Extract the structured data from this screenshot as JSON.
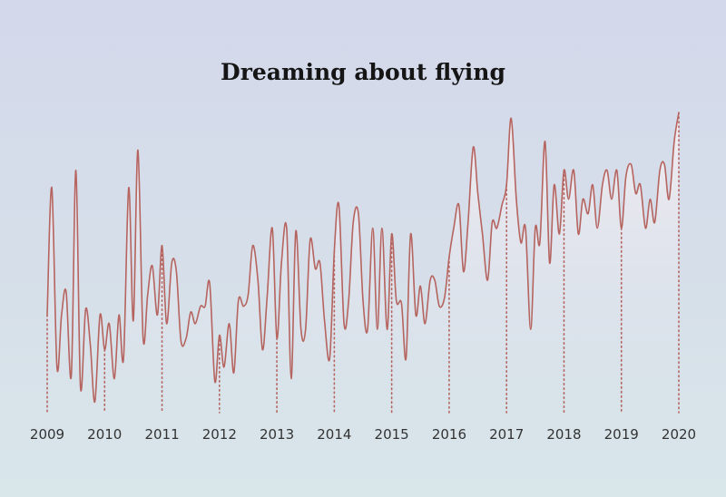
{
  "chart_data": {
    "type": "area",
    "title": "Dreaming about flying",
    "xlabel": "",
    "ylabel": "",
    "x_tick_labels": [
      "2009",
      "2010",
      "2011",
      "2012",
      "2013",
      "2014",
      "2015",
      "2016",
      "2017",
      "2018",
      "2019",
      "2020"
    ],
    "ylim": [
      0,
      100
    ],
    "grid": false,
    "colors": {
      "line": "#b5645f",
      "fill_top": "#f4eef1",
      "fill_bottom": "#e1e5ef"
    },
    "series": [
      {
        "values": [
          [
            2009.0,
            30
          ],
          [
            2009.08,
            74
          ],
          [
            2009.17,
            12
          ],
          [
            2009.25,
            30
          ],
          [
            2009.33,
            38
          ],
          [
            2009.42,
            9
          ],
          [
            2009.5,
            80
          ],
          [
            2009.58,
            5
          ],
          [
            2009.67,
            32
          ],
          [
            2009.75,
            20
          ],
          [
            2009.83,
            0
          ],
          [
            2009.92,
            30
          ],
          [
            2010.0,
            18
          ],
          [
            2010.08,
            27
          ],
          [
            2010.17,
            8
          ],
          [
            2010.25,
            30
          ],
          [
            2010.33,
            15
          ],
          [
            2010.42,
            74
          ],
          [
            2010.5,
            28
          ],
          [
            2010.58,
            87
          ],
          [
            2010.67,
            22
          ],
          [
            2010.75,
            37
          ],
          [
            2010.83,
            47
          ],
          [
            2010.92,
            30
          ],
          [
            2011.0,
            54
          ],
          [
            2011.08,
            27
          ],
          [
            2011.17,
            48
          ],
          [
            2011.25,
            45
          ],
          [
            2011.33,
            21
          ],
          [
            2011.42,
            22
          ],
          [
            2011.5,
            31
          ],
          [
            2011.58,
            27
          ],
          [
            2011.67,
            33
          ],
          [
            2011.75,
            33
          ],
          [
            2011.83,
            41
          ],
          [
            2011.92,
            7
          ],
          [
            2012.0,
            23
          ],
          [
            2012.08,
            12
          ],
          [
            2012.17,
            27
          ],
          [
            2012.25,
            10
          ],
          [
            2012.33,
            35
          ],
          [
            2012.42,
            33
          ],
          [
            2012.5,
            37
          ],
          [
            2012.58,
            54
          ],
          [
            2012.67,
            42
          ],
          [
            2012.75,
            18
          ],
          [
            2012.83,
            36
          ],
          [
            2012.92,
            60
          ],
          [
            2013.0,
            22
          ],
          [
            2013.08,
            48
          ],
          [
            2013.17,
            60
          ],
          [
            2013.25,
            8
          ],
          [
            2013.33,
            59
          ],
          [
            2013.42,
            25
          ],
          [
            2013.5,
            25
          ],
          [
            2013.58,
            56
          ],
          [
            2013.67,
            46
          ],
          [
            2013.75,
            48
          ],
          [
            2013.83,
            28
          ],
          [
            2013.92,
            15
          ],
          [
            2014.0,
            52
          ],
          [
            2014.08,
            68
          ],
          [
            2014.17,
            27
          ],
          [
            2014.25,
            35
          ],
          [
            2014.33,
            62
          ],
          [
            2014.42,
            65
          ],
          [
            2014.5,
            35
          ],
          [
            2014.58,
            25
          ],
          [
            2014.67,
            60
          ],
          [
            2014.75,
            25
          ],
          [
            2014.83,
            60
          ],
          [
            2014.92,
            25
          ],
          [
            2015.0,
            58
          ],
          [
            2015.08,
            35
          ],
          [
            2015.17,
            34
          ],
          [
            2015.25,
            15
          ],
          [
            2015.33,
            58
          ],
          [
            2015.42,
            30
          ],
          [
            2015.5,
            40
          ],
          [
            2015.58,
            27
          ],
          [
            2015.67,
            42
          ],
          [
            2015.75,
            42
          ],
          [
            2015.83,
            33
          ],
          [
            2015.92,
            36
          ],
          [
            2016.0,
            50
          ],
          [
            2016.08,
            60
          ],
          [
            2016.17,
            68
          ],
          [
            2016.25,
            45
          ],
          [
            2016.33,
            62
          ],
          [
            2016.42,
            88
          ],
          [
            2016.5,
            72
          ],
          [
            2016.58,
            58
          ],
          [
            2016.67,
            42
          ],
          [
            2016.75,
            62
          ],
          [
            2016.83,
            60
          ],
          [
            2016.92,
            68
          ],
          [
            2017.0,
            75
          ],
          [
            2017.08,
            98
          ],
          [
            2017.17,
            70
          ],
          [
            2017.25,
            55
          ],
          [
            2017.33,
            60
          ],
          [
            2017.42,
            25
          ],
          [
            2017.5,
            60
          ],
          [
            2017.58,
            55
          ],
          [
            2017.67,
            90
          ],
          [
            2017.75,
            48
          ],
          [
            2017.83,
            75
          ],
          [
            2017.92,
            58
          ],
          [
            2018.0,
            80
          ],
          [
            2018.08,
            70
          ],
          [
            2018.17,
            80
          ],
          [
            2018.25,
            58
          ],
          [
            2018.33,
            70
          ],
          [
            2018.42,
            65
          ],
          [
            2018.5,
            75
          ],
          [
            2018.58,
            60
          ],
          [
            2018.67,
            75
          ],
          [
            2018.75,
            80
          ],
          [
            2018.83,
            70
          ],
          [
            2018.92,
            80
          ],
          [
            2019.0,
            60
          ],
          [
            2019.08,
            78
          ],
          [
            2019.17,
            82
          ],
          [
            2019.25,
            72
          ],
          [
            2019.33,
            75
          ],
          [
            2019.42,
            60
          ],
          [
            2019.5,
            70
          ],
          [
            2019.58,
            62
          ],
          [
            2019.67,
            80
          ],
          [
            2019.75,
            82
          ],
          [
            2019.83,
            70
          ],
          [
            2019.92,
            90
          ],
          [
            2020.0,
            100
          ]
        ]
      }
    ]
  }
}
